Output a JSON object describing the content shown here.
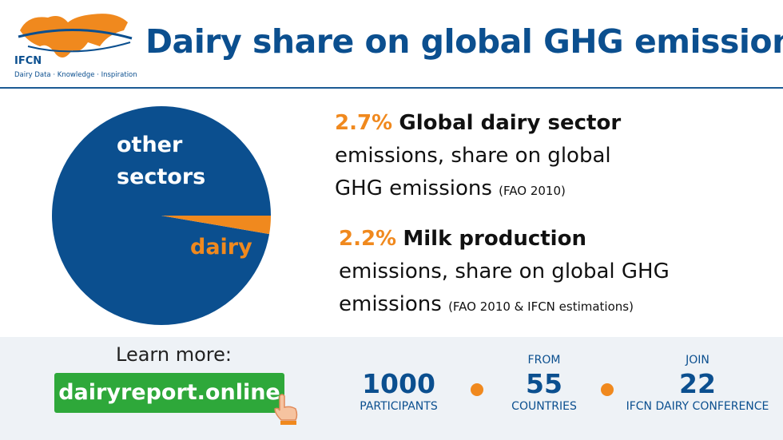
{
  "header": {
    "logo_name": "IFCN",
    "logo_tagline": "Dairy Data · Knowledge · Inspiration",
    "title": "Dairy share on global GHG emissions"
  },
  "chart_data": {
    "type": "pie",
    "categories": [
      "other sectors",
      "dairy"
    ],
    "values": [
      97.3,
      2.7
    ],
    "colors": [
      "#0b4f8f",
      "#f0891e"
    ],
    "label_colors": [
      "#ffffff",
      "#f0891e"
    ]
  },
  "facts": [
    {
      "percent": "2.7%",
      "heading": "Global dairy sector",
      "text": "emissions, share on global GHG emissions",
      "source": "(FAO 2010)"
    },
    {
      "percent": "2.2%",
      "heading": "Milk production",
      "text": "emissions, share on global GHG emissions",
      "source": "(FAO 2010 & IFCN estimations)"
    }
  ],
  "footer": {
    "learn_more": "Learn more:",
    "link": "dairyreport.online",
    "stats": [
      {
        "pre": null,
        "number": "1000",
        "label": "PARTICIPANTS"
      },
      {
        "pre": "FROM",
        "number": "55",
        "label": "COUNTRIES"
      },
      {
        "pre": "JOIN",
        "number": "22",
        "label": "IFCN DAIRY CONFERENCE"
      }
    ]
  }
}
